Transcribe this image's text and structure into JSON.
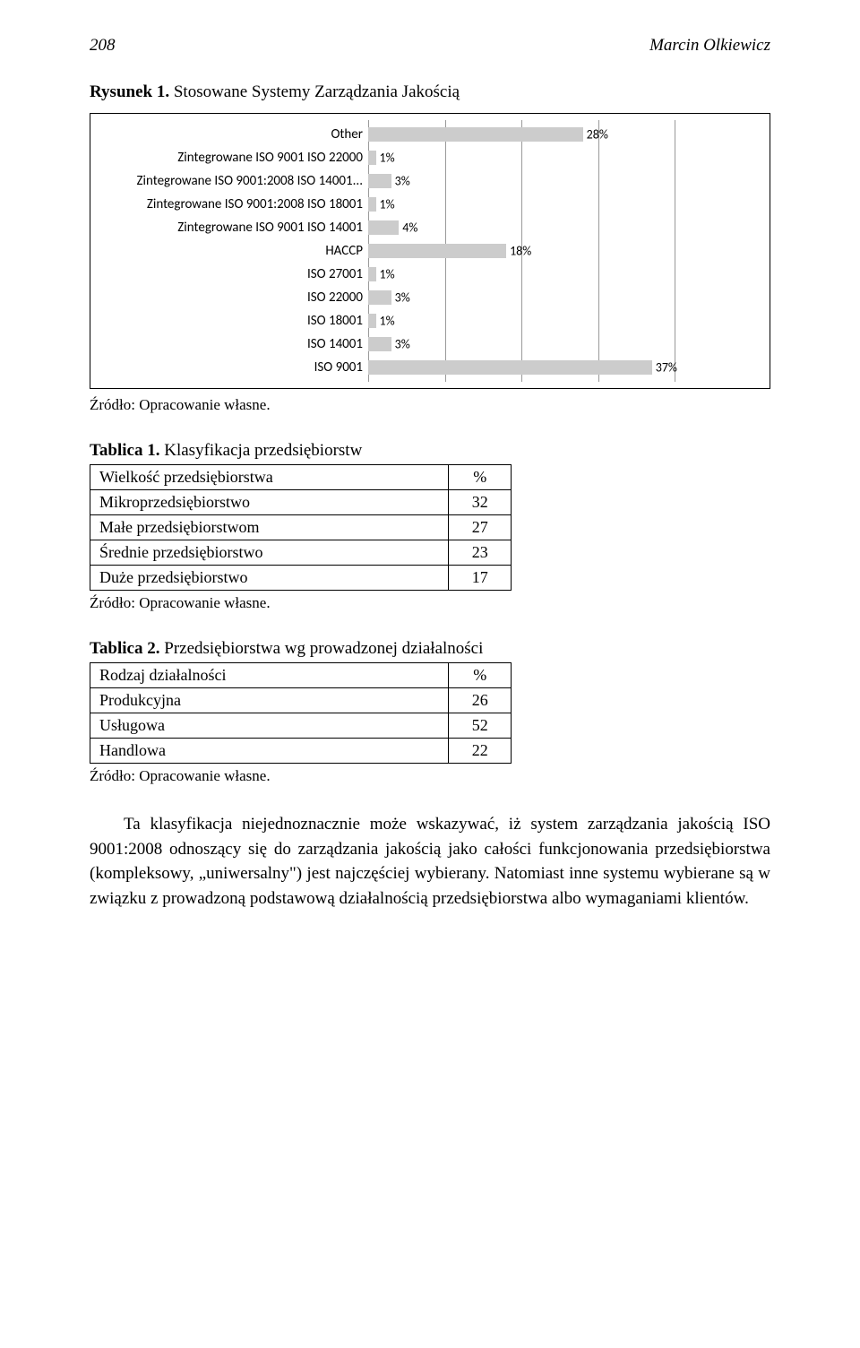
{
  "header": {
    "page_number": "208",
    "author": "Marcin Olkiewicz"
  },
  "figure": {
    "caption_label": "Rysunek 1.",
    "caption_text": "Stosowane Systemy Zarządzania Jakością",
    "chart": {
      "type": "bar",
      "bar_color": "#cccccc",
      "grid_color": "#999999",
      "label_font": "Segoe UI",
      "xlim": [
        0,
        50
      ],
      "xtick_step": 10,
      "categories": [
        {
          "label": "Other",
          "value": 28,
          "text": "28%"
        },
        {
          "label": "Zintegrowane ISO 9001 ISO 22000",
          "value": 1,
          "text": "1%"
        },
        {
          "label": "Zintegrowane ISO 9001:2008 ISO 14001...",
          "value": 3,
          "text": "3%"
        },
        {
          "label": "Zintegrowane ISO 9001:2008 ISO 18001",
          "value": 1,
          "text": "1%"
        },
        {
          "label": "Zintegrowane ISO 9001 ISO 14001",
          "value": 4,
          "text": "4%"
        },
        {
          "label": "HACCP",
          "value": 18,
          "text": "18%"
        },
        {
          "label": "ISO 27001",
          "value": 1,
          "text": "1%"
        },
        {
          "label": "ISO 22000",
          "value": 3,
          "text": "3%"
        },
        {
          "label": "ISO 18001",
          "value": 1,
          "text": "1%"
        },
        {
          "label": "ISO 14001",
          "value": 3,
          "text": "3%"
        },
        {
          "label": "ISO 9001",
          "value": 37,
          "text": "37%"
        }
      ]
    },
    "source": "Źródło: Opracowanie własne."
  },
  "table1": {
    "caption_label": "Tablica 1.",
    "caption_text": "Klasyfikacja przedsiębiorstw",
    "header": [
      "Wielkość przedsiębiorstwa",
      "%"
    ],
    "rows": [
      [
        "Mikroprzedsiębiorstwo",
        "32"
      ],
      [
        "Małe przedsiębiorstwom",
        "27"
      ],
      [
        "Średnie przedsiębiorstwo",
        "23"
      ],
      [
        "Duże przedsiębiorstwo",
        "17"
      ]
    ],
    "source": "Źródło: Opracowanie własne."
  },
  "table2": {
    "caption_label": "Tablica 2.",
    "caption_text": "Przedsiębiorstwa wg prowadzonej działalności",
    "header": [
      "Rodzaj działalności",
      "%"
    ],
    "rows": [
      [
        "Produkcyjna",
        "26"
      ],
      [
        "Usługowa",
        "52"
      ],
      [
        "Handlowa",
        "22"
      ]
    ],
    "source": "Źródło: Opracowanie własne."
  },
  "body_paragraph": "Ta klasyfikacja niejednoznacznie może wskazywać, iż system zarządzania jakością ISO 9001:2008 odnoszący się do zarządzania jakością jako całości funkcjonowania przedsiębiorstwa (kompleksowy, „uniwersalny\") jest najczęściej wybierany. Natomiast inne systemu wybierane są w związku z prowadzoną podstawową działalnością przedsiębiorstwa albo wymaganiami klientów."
}
